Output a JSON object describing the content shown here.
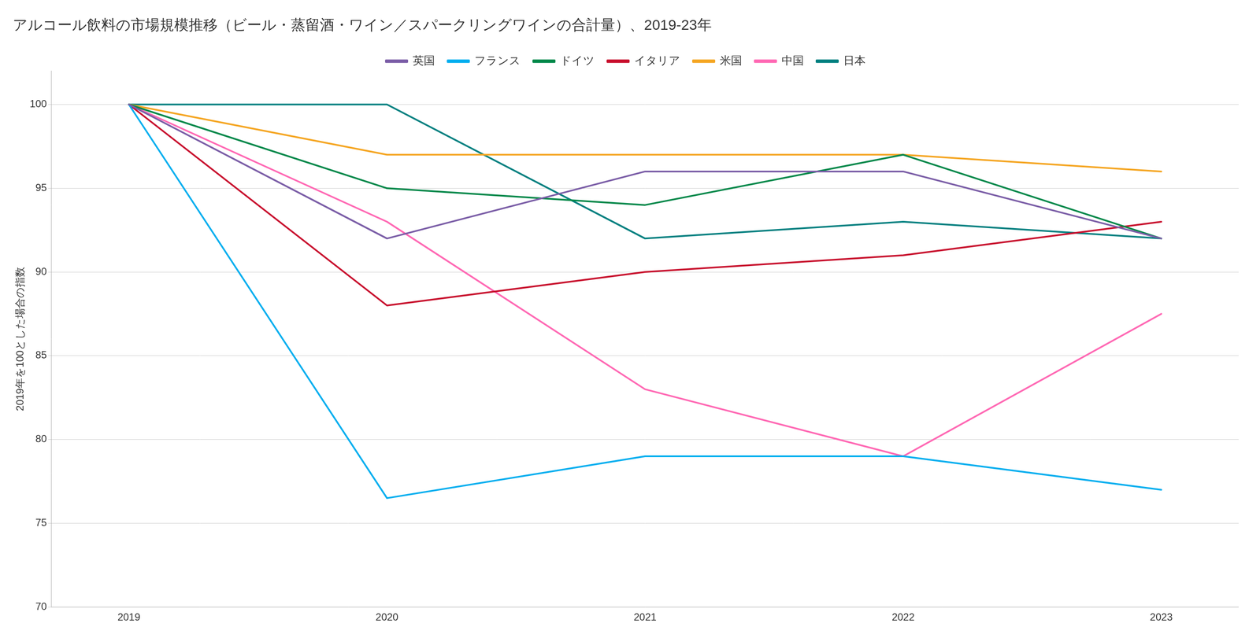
{
  "chart_data": {
    "type": "line",
    "title": "アルコール飲料の市場規模推移（ビール・蒸留酒・ワイン／スパークリングワインの合計量）、2019-23年",
    "ylabel": "2019年を100とした場合の指数",
    "x": [
      2019,
      2020,
      2021,
      2022,
      2023
    ],
    "series": [
      {
        "name": "英国",
        "color": "#7B5EA7",
        "values": [
          100,
          92,
          96,
          96,
          92
        ]
      },
      {
        "name": "フランス",
        "color": "#00AEEF",
        "values": [
          100,
          76.5,
          79,
          79,
          77
        ]
      },
      {
        "name": "ドイツ",
        "color": "#00884A",
        "values": [
          100,
          95,
          94,
          97,
          92
        ]
      },
      {
        "name": "イタリア",
        "color": "#C8102E",
        "values": [
          100,
          88,
          90,
          91,
          93
        ]
      },
      {
        "name": "米国",
        "color": "#F5A623",
        "values": [
          100,
          97,
          97,
          97,
          96
        ]
      },
      {
        "name": "中国",
        "color": "#FF69B4",
        "values": [
          100,
          93,
          83,
          79,
          87.5
        ]
      },
      {
        "name": "日本",
        "color": "#008080",
        "values": [
          100,
          100,
          92,
          93,
          92
        ]
      }
    ],
    "xlim": [
      2018.7,
      2023.3
    ],
    "xticks": [
      2019,
      2020,
      2021,
      2022,
      2023
    ],
    "ylim": [
      70,
      102
    ],
    "yticks": [
      70,
      75,
      80,
      85,
      90,
      95,
      100
    ],
    "grid": "y",
    "legend": "top"
  }
}
